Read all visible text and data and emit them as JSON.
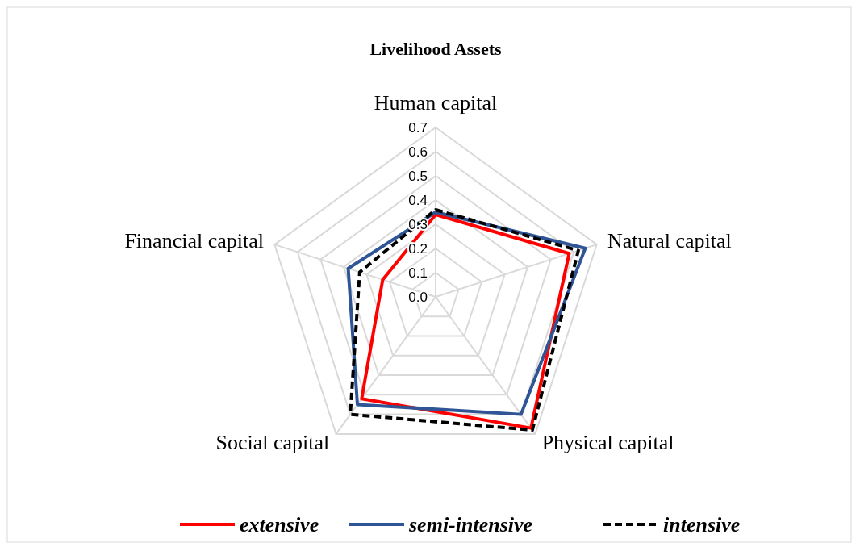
{
  "chart_data": {
    "type": "radar",
    "title": "Livelihood Assets",
    "categories": [
      "Human capital",
      "Natural capital",
      "Physical capital",
      "Social capital",
      "Financial capital"
    ],
    "ylim": [
      0,
      0.7
    ],
    "yticks": [
      {
        "value": 0,
        "label": "0.0"
      },
      {
        "value": 0.1,
        "label": "0.1"
      },
      {
        "value": 0.2,
        "label": "0.2"
      },
      {
        "value": 0.3,
        "label": "0.3"
      },
      {
        "value": 0.4,
        "label": "0.4"
      },
      {
        "value": 0.5,
        "label": "0.5"
      },
      {
        "value": 0.6,
        "label": "0.6"
      },
      {
        "value": 0.7,
        "label": "0.7"
      }
    ],
    "grid": true,
    "legend": "bottom",
    "series": [
      {
        "name": "extensive",
        "color": "#ff0000",
        "line_style": "solid",
        "values": [
          0.34,
          0.58,
          0.67,
          0.52,
          0.23
        ]
      },
      {
        "name": "semi-intensive",
        "color": "#2f5597",
        "line_style": "solid",
        "values": [
          0.35,
          0.65,
          0.6,
          0.55,
          0.38
        ]
      },
      {
        "name": "intensive",
        "color": "#000000",
        "line_style": "dashed",
        "values": [
          0.36,
          0.62,
          0.68,
          0.6,
          0.33
        ]
      }
    ]
  }
}
